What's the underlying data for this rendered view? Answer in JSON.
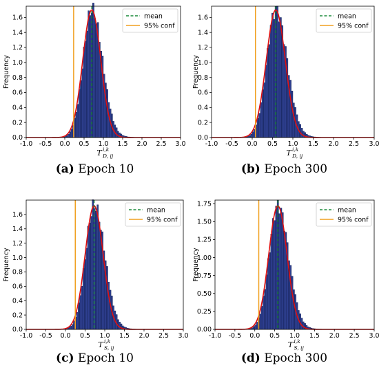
{
  "legend": {
    "mean_label": "mean",
    "conf_label": "95% conf"
  },
  "colors": {
    "bar": "#2e3f8f",
    "bar_edge": "#0d1a4a",
    "fit": "#e01010",
    "mean": "#1a8a3a",
    "conf": "#f0a020"
  },
  "panels": [
    {
      "caption_letter": "(a)",
      "caption_text": "Epoch 10"
    },
    {
      "caption_letter": "(b)",
      "caption_text": "Epoch 300"
    },
    {
      "caption_letter": "(c)",
      "caption_text": "Epoch 10"
    },
    {
      "caption_letter": "(d)",
      "caption_text": "Epoch 300"
    }
  ],
  "chart_data": [
    {
      "type": "bar",
      "ylabel": "Frequency",
      "xlabel_main": "T",
      "xlabel_sup": "i,k",
      "xlabel_sub": "D, ij",
      "xlim": [
        -1.0,
        3.0
      ],
      "ylim": [
        0,
        1.75
      ],
      "xticks": [
        "-1.0",
        "-0.5",
        "0.0",
        "0.5",
        "1.0",
        "1.5",
        "2.0",
        "2.5",
        "3.0"
      ],
      "yticks": [
        "0.0",
        "0.2",
        "0.4",
        "0.6",
        "0.8",
        "1.0",
        "1.2",
        "1.4",
        "1.6"
      ],
      "mean": 0.7,
      "conf": 0.23,
      "fit": {
        "mu": 0.7,
        "sigma": 0.235,
        "peak": 1.7
      },
      "legend_position": "top-right"
    },
    {
      "type": "bar",
      "ylabel": "Frequency",
      "xlabel_main": "T",
      "xlabel_sup": "i,k",
      "xlabel_sub": "D, ij",
      "xlim": [
        -1.0,
        3.0
      ],
      "ylim": [
        0,
        1.75
      ],
      "xticks": [
        "-1.0",
        "-0.5",
        "0.0",
        "0.5",
        "1.0",
        "1.5",
        "2.0",
        "2.5",
        "3.0"
      ],
      "yticks": [
        "0.0",
        "0.2",
        "0.4",
        "0.6",
        "0.8",
        "1.0",
        "1.2",
        "1.4",
        "1.6"
      ],
      "mean": 0.58,
      "conf": 0.08,
      "fit": {
        "mu": 0.58,
        "sigma": 0.235,
        "peak": 1.7
      },
      "legend_position": "top-right"
    },
    {
      "type": "bar",
      "ylabel": "Frequency",
      "xlabel_main": "T",
      "xlabel_sup": "i,k",
      "xlabel_sub": "S, ij",
      "xlim": [
        -1.0,
        3.0
      ],
      "ylim": [
        0,
        1.8
      ],
      "xticks": [
        "-1.0",
        "-0.5",
        "0.0",
        "0.5",
        "1.0",
        "1.5",
        "2.0",
        "2.5",
        "3.0"
      ],
      "yticks": [
        "0.0",
        "0.2",
        "0.4",
        "0.6",
        "0.8",
        "1.0",
        "1.2",
        "1.4",
        "1.6"
      ],
      "mean": 0.73,
      "conf": 0.25,
      "fit": {
        "mu": 0.73,
        "sigma": 0.23,
        "peak": 1.72
      },
      "legend_position": "top-right"
    },
    {
      "type": "bar",
      "ylabel": "Frequency",
      "xlabel_main": "T",
      "xlabel_sup": "i,k",
      "xlabel_sub": "S, ij",
      "xlim": [
        -1.0,
        3.0
      ],
      "ylim": [
        0,
        1.8
      ],
      "xticks": [
        "-1.0",
        "-0.5",
        "0.0",
        "0.5",
        "1.0",
        "1.5",
        "2.0",
        "2.5",
        "3.0"
      ],
      "yticks": [
        "0.00",
        "0.25",
        "0.50",
        "0.75",
        "1.00",
        "1.25",
        "1.50",
        "1.75"
      ],
      "mean": 0.58,
      "conf": 0.1,
      "fit": {
        "mu": 0.58,
        "sigma": 0.23,
        "peak": 1.72
      },
      "legend_position": "top-right"
    }
  ]
}
